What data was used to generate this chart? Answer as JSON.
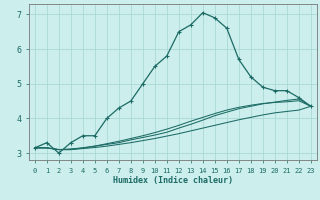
{
  "xlabel": "Humidex (Indice chaleur)",
  "bg_color": "#cceeed",
  "grid_color": "#aad8d5",
  "line_color": "#1c6b65",
  "xlim": [
    -0.5,
    23.5
  ],
  "ylim": [
    2.8,
    7.3
  ],
  "xticks": [
    0,
    1,
    2,
    3,
    4,
    5,
    6,
    7,
    8,
    9,
    10,
    11,
    12,
    13,
    14,
    15,
    16,
    17,
    18,
    19,
    20,
    21,
    22,
    23
  ],
  "yticks": [
    3,
    4,
    5,
    6,
    7
  ],
  "curve1_x": [
    0,
    1,
    2,
    3,
    4,
    5,
    6,
    7,
    8,
    9,
    10,
    11,
    12,
    13,
    14,
    15,
    16,
    17,
    18,
    19,
    20,
    21,
    22,
    23
  ],
  "curve1_y": [
    3.15,
    3.3,
    3.0,
    3.3,
    3.5,
    3.5,
    4.0,
    4.3,
    4.5,
    5.0,
    5.5,
    5.8,
    6.5,
    6.7,
    7.05,
    6.9,
    6.6,
    5.7,
    5.2,
    4.9,
    4.8,
    4.8,
    4.6,
    4.35
  ],
  "curve2_x": [
    0,
    1,
    2,
    3,
    4,
    5,
    6,
    7,
    8,
    9,
    10,
    11,
    12,
    13,
    14,
    15,
    16,
    17,
    18,
    19,
    20,
    21,
    22,
    23
  ],
  "curve2_y": [
    3.15,
    3.15,
    3.1,
    3.1,
    3.15,
    3.2,
    3.25,
    3.3,
    3.38,
    3.45,
    3.52,
    3.6,
    3.72,
    3.83,
    3.95,
    4.08,
    4.18,
    4.28,
    4.35,
    4.42,
    4.47,
    4.52,
    4.56,
    4.35
  ],
  "curve3_x": [
    0,
    1,
    2,
    3,
    4,
    5,
    6,
    7,
    8,
    9,
    10,
    11,
    12,
    13,
    14,
    15,
    16,
    17,
    18,
    19,
    20,
    21,
    22,
    23
  ],
  "curve3_y": [
    3.15,
    3.15,
    3.1,
    3.12,
    3.15,
    3.2,
    3.27,
    3.34,
    3.42,
    3.5,
    3.59,
    3.69,
    3.8,
    3.92,
    4.03,
    4.14,
    4.24,
    4.32,
    4.38,
    4.43,
    4.46,
    4.48,
    4.51,
    4.35
  ],
  "curve4_x": [
    0,
    1,
    2,
    3,
    4,
    5,
    6,
    7,
    8,
    9,
    10,
    11,
    12,
    13,
    14,
    15,
    16,
    17,
    18,
    19,
    20,
    21,
    22,
    23
  ],
  "curve4_y": [
    3.15,
    3.15,
    3.1,
    3.1,
    3.13,
    3.16,
    3.2,
    3.25,
    3.3,
    3.36,
    3.42,
    3.49,
    3.56,
    3.64,
    3.72,
    3.8,
    3.88,
    3.96,
    4.03,
    4.1,
    4.16,
    4.2,
    4.24,
    4.35
  ]
}
